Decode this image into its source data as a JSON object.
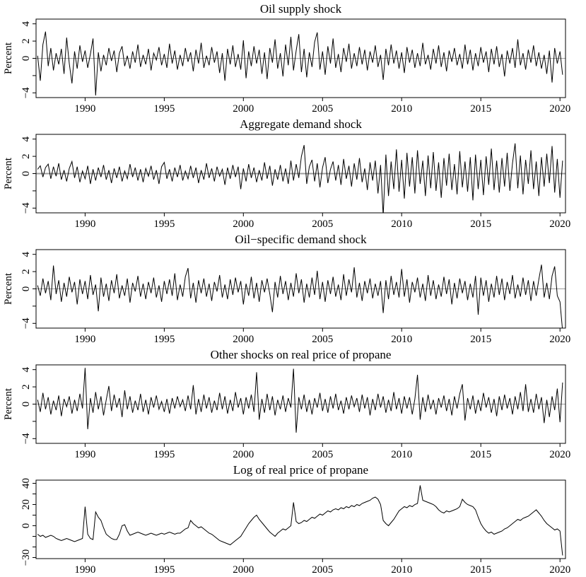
{
  "figure": {
    "background": "#ffffff",
    "series_color": "#000000",
    "axis_color": "#000000",
    "zero_line_color": "#9c9c9c",
    "font_size_title": 17,
    "font_size_ticks": 15
  },
  "chart_data": [
    {
      "type": "line",
      "title": "Oil supply shock",
      "ylabel": "Percent",
      "x_start": 1987.0,
      "x_step_years": 0.166667,
      "x_range": [
        1986.9,
        2020.35
      ],
      "xticks": [
        1990,
        1995,
        2000,
        2005,
        2010,
        2015,
        2020
      ],
      "ylim": [
        -4.55,
        4.55
      ],
      "ytick_positions": [
        -4,
        -2,
        0,
        2,
        4
      ],
      "ytick_labels": [
        "−4",
        "",
        "0",
        "2",
        "4"
      ],
      "zero_line": true,
      "zero_line_width": 1,
      "values": [
        0.3,
        -2.6,
        1.6,
        3.1,
        -0.9,
        1.2,
        -1.4,
        0.6,
        -0.7,
        1.1,
        -1.8,
        2.4,
        -0.6,
        -2.9,
        0.8,
        -1.2,
        1.5,
        -0.4,
        0.9,
        -1.1,
        0.5,
        2.3,
        -4.3,
        0.7,
        -1.5,
        0.4,
        -0.8,
        1.2,
        -0.3,
        0.9,
        -1.6,
        0.6,
        1.4,
        -0.9,
        0.3,
        -1.2,
        0.8,
        -0.5,
        1.6,
        -1.0,
        0.4,
        -0.7,
        1.1,
        -1.4,
        0.6,
        -0.2,
        1.3,
        -0.8,
        0.5,
        -1.1,
        1.7,
        -0.6,
        0.9,
        -1.3,
        0.4,
        -0.9,
        1.2,
        -0.4,
        0.7,
        -1.5,
        1.0,
        -0.6,
        1.8,
        -1.1,
        0.3,
        -0.8,
        1.3,
        -0.5,
        0.8,
        -1.7,
        0.6,
        -2.6,
        1.1,
        -0.7,
        1.5,
        -1.0,
        0.5,
        -1.3,
        2.1,
        -2.3,
        0.8,
        -0.9,
        1.4,
        -0.6,
        1.0,
        -1.8,
        0.7,
        -2.4,
        1.2,
        -0.5,
        2.2,
        -1.2,
        0.6,
        -2.1,
        1.6,
        -0.8,
        2.5,
        -1.4,
        0.9,
        2.8,
        -1.6,
        1.1,
        -2.2,
        0.7,
        -1.0,
        1.9,
        3.0,
        -1.3,
        0.8,
        -1.9,
        1.4,
        -0.6,
        2.3,
        -1.1,
        0.5,
        -1.6,
        1.2,
        -0.4,
        1.7,
        -1.2,
        0.6,
        -0.9,
        1.3,
        -0.7,
        1.0,
        -1.4,
        0.8,
        -0.5,
        1.5,
        -1.0,
        0.4,
        -2.5,
        1.1,
        -0.8,
        1.6,
        -0.6,
        0.9,
        -1.2,
        0.7,
        -1.7,
        1.3,
        -0.5,
        1.0,
        -1.1,
        0.6,
        -0.9,
        1.8,
        -0.7,
        0.4,
        -1.3,
        1.1,
        -0.6,
        1.5,
        -1.0,
        0.7,
        -1.5,
        0.9,
        -0.4,
        1.2,
        -0.8,
        0.5,
        -1.2,
        1.6,
        -0.7,
        1.0,
        -1.4,
        0.6,
        -0.9,
        1.3,
        -0.5,
        0.8,
        -1.6,
        1.1,
        -0.7,
        1.4,
        -1.0,
        0.5,
        -2.1,
        0.9,
        -0.6,
        1.2,
        -1.1,
        2.2,
        -0.8,
        0.6,
        -1.3,
        1.0,
        -0.5,
        1.5,
        -0.9,
        0.7,
        -1.2,
        0.4,
        -1.8,
        0.9,
        -2.8,
        1.2,
        -0.6,
        0.8,
        -1.9
      ]
    },
    {
      "type": "line",
      "title": "Aggregate demand shock",
      "ylabel": "Percent",
      "x_start": 1987.0,
      "x_step_years": 0.166667,
      "x_range": [
        1986.9,
        2020.35
      ],
      "xticks": [
        1990,
        1995,
        2000,
        2005,
        2010,
        2015,
        2020
      ],
      "ylim": [
        -4.55,
        4.55
      ],
      "ytick_positions": [
        -4,
        -2,
        0,
        2,
        4
      ],
      "ytick_labels": [
        "−4",
        "",
        "0",
        "2",
        "4"
      ],
      "zero_line": true,
      "zero_line_width": 2,
      "values": [
        0.5,
        0.9,
        -0.4,
        0.7,
        1.1,
        -0.6,
        0.8,
        -0.3,
        1.2,
        -0.7,
        0.4,
        -0.9,
        0.6,
        1.4,
        -0.5,
        0.8,
        -1.0,
        0.3,
        -0.6,
        0.9,
        -1.2,
        0.5,
        -0.8,
        0.7,
        -0.4,
        1.0,
        -0.7,
        0.4,
        -1.1,
        0.6,
        -0.5,
        0.8,
        -0.9,
        0.3,
        -0.6,
        1.1,
        -0.4,
        0.7,
        -0.8,
        0.5,
        -1.0,
        0.6,
        -0.3,
        0.9,
        -0.7,
        0.4,
        -1.2,
        0.8,
        1.3,
        -0.6,
        0.5,
        -0.9,
        0.7,
        -0.4,
        1.0,
        -0.8,
        0.3,
        -0.6,
        0.9,
        -0.5,
        0.7,
        -1.1,
        0.4,
        -0.7,
        1.2,
        -0.5,
        0.6,
        -0.9,
        0.8,
        -0.3,
        0.5,
        -1.3,
        0.7,
        -0.6,
        1.0,
        -0.4,
        0.8,
        -1.8,
        0.6,
        -0.9,
        1.1,
        -0.5,
        0.7,
        -1.0,
        0.4,
        -0.8,
        1.3,
        -0.6,
        0.9,
        -1.4,
        0.5,
        -0.7,
        1.0,
        -0.9,
        0.6,
        -1.2,
        1.5,
        -0.8,
        1.1,
        -0.5,
        2.0,
        3.3,
        -1.2,
        0.8,
        1.6,
        -0.9,
        1.2,
        -1.6,
        0.7,
        1.9,
        -1.1,
        0.5,
        1.4,
        -0.8,
        1.0,
        -1.3,
        1.7,
        -0.6,
        0.9,
        -1.5,
        1.2,
        -0.7,
        1.8,
        -1.0,
        0.6,
        -1.9,
        1.3,
        -0.8,
        1.5,
        -2.3,
        1.0,
        -4.9,
        2.2,
        -2.6,
        1.4,
        -1.8,
        2.8,
        -2.1,
        1.6,
        -2.9,
        2.4,
        -1.5,
        1.9,
        -2.3,
        2.7,
        -1.2,
        1.5,
        -2.6,
        2.1,
        -1.7,
        2.5,
        -2.0,
        1.3,
        -2.8,
        1.8,
        -1.4,
        2.3,
        -1.9,
        1.1,
        -2.4,
        2.6,
        -1.6,
        1.4,
        -2.1,
        1.9,
        -3.1,
        2.2,
        -1.8,
        1.6,
        -2.5,
        2.0,
        -1.3,
        2.9,
        -1.9,
        1.5,
        -2.2,
        1.8,
        -1.5,
        2.4,
        -2.0,
        1.2,
        3.5,
        -1.7,
        2.1,
        -2.4,
        1.6,
        -1.2,
        2.7,
        -1.8,
        1.4,
        -2.6,
        1.9,
        -1.5,
        2.3,
        -1.1,
        3.2,
        -2.2,
        1.7,
        -2.8,
        1.5
      ]
    },
    {
      "type": "line",
      "title": "Oil−specific demand shock",
      "ylabel": "Percent",
      "x_start": 1987.0,
      "x_step_years": 0.166667,
      "x_range": [
        1986.9,
        2020.35
      ],
      "xticks": [
        1990,
        1995,
        2000,
        2005,
        2010,
        2015,
        2020
      ],
      "ylim": [
        -4.55,
        4.55
      ],
      "ytick_positions": [
        -4,
        -2,
        0,
        2,
        4
      ],
      "ytick_labels": [
        "−4",
        "",
        "0",
        "2",
        "4"
      ],
      "zero_line": true,
      "zero_line_width": 1,
      "values": [
        0.4,
        -0.8,
        1.2,
        -0.5,
        0.9,
        -1.3,
        2.7,
        -0.6,
        1.0,
        -1.5,
        0.7,
        -0.9,
        1.4,
        -0.4,
        0.8,
        -1.8,
        1.1,
        -0.6,
        0.9,
        -1.2,
        1.6,
        -0.7,
        0.5,
        -2.6,
        1.3,
        -0.9,
        0.6,
        -1.4,
        1.0,
        -0.5,
        1.7,
        -1.1,
        0.4,
        -0.8,
        1.2,
        -1.6,
        0.7,
        -0.3,
        1.5,
        -0.9,
        0.6,
        -1.2,
        0.8,
        -0.5,
        1.3,
        -1.0,
        0.4,
        -1.5,
        0.9,
        -0.6,
        1.1,
        -0.8,
        1.8,
        -1.3,
        0.5,
        -0.9,
        1.4,
        2.4,
        -1.1,
        0.7,
        -1.6,
        1.0,
        -0.5,
        1.2,
        -0.9,
        0.6,
        -1.4,
        0.8,
        -0.3,
        1.6,
        -1.0,
        0.5,
        -1.2,
        1.1,
        -0.7,
        1.3,
        -0.4,
        0.9,
        -1.8,
        0.6,
        -0.8,
        1.4,
        -1.1,
        0.7,
        -1.5,
        1.0,
        -0.4,
        1.2,
        -0.6,
        -2.7,
        0.8,
        -1.0,
        1.5,
        -0.6,
        0.9,
        -1.3,
        0.7,
        -0.9,
        1.8,
        -0.5,
        1.1,
        -1.6,
        0.6,
        -1.0,
        1.3,
        -0.7,
        2.1,
        -1.2,
        0.8,
        -1.5,
        1.0,
        -0.6,
        1.4,
        -0.9,
        0.5,
        -1.3,
        1.7,
        -0.8,
        1.1,
        -0.4,
        2.5,
        -1.0,
        0.7,
        -1.4,
        0.9,
        -0.5,
        1.2,
        -1.1,
        0.6,
        -0.8,
        0.9,
        -2.8,
        1.0,
        -1.2,
        1.5,
        -0.7,
        0.8,
        -1.0,
        2.3,
        -0.9,
        1.1,
        -1.6,
        0.8,
        -0.4,
        1.3,
        -1.0,
        0.6,
        -1.4,
        1.6,
        -0.8,
        1.0,
        -1.2,
        0.5,
        -0.9,
        1.4,
        -0.6,
        1.1,
        -1.8,
        0.7,
        -1.1,
        1.2,
        -0.5,
        0.9,
        -1.3,
        0.6,
        -1.0,
        1.5,
        -3.0,
        1.3,
        -0.8,
        1.0,
        -1.5,
        0.6,
        -1.0,
        1.5,
        -0.7,
        1.2,
        -1.3,
        0.8,
        -0.6,
        1.6,
        -1.1,
        0.5,
        -0.9,
        1.3,
        -0.7,
        1.0,
        -1.4,
        0.9,
        -0.8,
        1.1,
        2.8,
        -1.0,
        0.7,
        -1.2,
        1.5,
        2.6,
        -0.8,
        -1.5,
        -4.9
      ]
    },
    {
      "type": "line",
      "title": "Other shocks on real price of propane",
      "ylabel": "Percent",
      "x_start": 1987.0,
      "x_step_years": 0.166667,
      "x_range": [
        1986.9,
        2020.35
      ],
      "xticks": [
        1990,
        1995,
        2000,
        2005,
        2010,
        2015,
        2020
      ],
      "ylim": [
        -4.55,
        4.55
      ],
      "ytick_positions": [
        -4,
        -2,
        0,
        2,
        4
      ],
      "ytick_labels": [
        "−4",
        "",
        "0",
        "2",
        "4"
      ],
      "zero_line": true,
      "zero_line_width": 1,
      "values": [
        0.5,
        -0.9,
        1.3,
        -0.6,
        0.8,
        -1.2,
        0.4,
        -0.7,
        1.0,
        -1.4,
        0.6,
        -0.3,
        0.9,
        -1.1,
        0.5,
        -0.8,
        1.2,
        -0.5,
        4.2,
        -2.9,
        0.7,
        -1.0,
        1.4,
        -0.6,
        0.9,
        -1.3,
        0.5,
        2.1,
        -0.8,
        1.1,
        -0.4,
        0.7,
        -1.5,
        1.6,
        -0.6,
        0.9,
        -1.0,
        0.4,
        -0.7,
        1.2,
        -0.9,
        0.5,
        -1.2,
        0.8,
        -0.4,
        1.0,
        -0.6,
        0.3,
        -0.9,
        0.6,
        -1.1,
        0.7,
        -0.5,
        0.9,
        -0.3,
        0.5,
        -0.8,
        1.0,
        -0.6,
        2.2,
        -1.2,
        0.6,
        -0.9,
        1.1,
        -0.5,
        0.8,
        -1.0,
        0.4,
        -0.7,
        1.3,
        -0.6,
        0.9,
        -1.1,
        0.5,
        -0.8,
        1.4,
        -0.4,
        0.7,
        -1.2,
        0.8,
        -0.5,
        1.1,
        -0.9,
        3.7,
        -1.8,
        0.6,
        -1.0,
        1.2,
        -0.7,
        0.9,
        -1.3,
        0.5,
        -0.6,
        1.0,
        -0.9,
        0.7,
        -0.4,
        4.1,
        -3.3,
        0.8,
        -0.6,
        1.1,
        -0.9,
        0.5,
        -1.2,
        0.7,
        -0.4,
        1.3,
        -0.8,
        0.6,
        -1.0,
        0.9,
        -0.5,
        1.2,
        -0.7,
        0.4,
        -1.1,
        0.8,
        -0.6,
        1.0,
        -0.3,
        0.7,
        -0.9,
        1.1,
        -0.5,
        0.8,
        -1.3,
        0.6,
        -0.7,
        1.2,
        -0.4,
        0.9,
        -1.0,
        0.5,
        -0.8,
        1.4,
        -0.6,
        0.7,
        -1.1,
        0.9,
        -0.5,
        0.8,
        -1.2,
        0.6,
        3.4,
        -1.8,
        0.8,
        -0.9,
        1.1,
        -0.6,
        0.5,
        -1.2,
        0.7,
        -0.4,
        1.0,
        -0.8,
        0.6,
        -1.3,
        0.9,
        -0.5,
        1.2,
        2.3,
        -1.9,
        0.7,
        -0.6,
        1.0,
        -1.1,
        0.5,
        -0.8,
        1.3,
        -0.4,
        0.8,
        -1.0,
        0.6,
        -1.4,
        0.9,
        -0.7,
        1.1,
        -0.5,
        0.7,
        -1.2,
        0.9,
        -0.6,
        1.4,
        -0.8,
        2.3,
        -0.9,
        0.6,
        -1.0,
        1.2,
        -0.6,
        0.8,
        -2.2,
        0.5,
        -1.5,
        0.9,
        -0.7,
        1.8,
        -2.1,
        2.5
      ]
    },
    {
      "type": "line",
      "title": "Log of real price of propane",
      "ylabel": "",
      "x_start": 1987.0,
      "x_step_years": 0.166667,
      "x_range": [
        1986.9,
        2020.35
      ],
      "xticks": [
        1990,
        1995,
        2000,
        2005,
        2010,
        2015,
        2020
      ],
      "ylim": [
        -31,
        43
      ],
      "ytick_positions": [
        -30,
        -20,
        -10,
        0,
        10,
        20,
        30,
        40
      ],
      "ytick_labels": [
        "−30",
        "",
        "",
        "0",
        "",
        "20",
        "",
        "40"
      ],
      "zero_line": false,
      "zero_line_width": 1,
      "values": [
        -8,
        -10,
        -9,
        -11,
        -10,
        -9,
        -10,
        -12,
        -13,
        -14,
        -13,
        -12,
        -13,
        -14,
        -15,
        -14,
        -13,
        -12,
        18,
        -8,
        -12,
        -13,
        13,
        8,
        5,
        -2,
        -8,
        -10,
        -12,
        -13,
        -13,
        -8,
        0,
        1,
        -5,
        -9,
        -8,
        -7,
        -6,
        -7,
        -8,
        -9,
        -8,
        -7,
        -8,
        -9,
        -8,
        -7,
        -8,
        -7,
        -6,
        -7,
        -8,
        -7,
        -7,
        -5,
        -3,
        -2,
        5,
        2,
        0,
        -2,
        -1,
        -3,
        -5,
        -7,
        -8,
        -10,
        -12,
        -14,
        -15,
        -16,
        -17,
        -18,
        -16,
        -14,
        -12,
        -10,
        -6,
        -2,
        2,
        5,
        8,
        10,
        6,
        3,
        0,
        -3,
        -6,
        -8,
        -10,
        -7,
        -5,
        -3,
        -4,
        -2,
        0,
        22,
        4,
        2,
        3,
        5,
        4,
        6,
        8,
        7,
        9,
        11,
        10,
        12,
        14,
        13,
        15,
        16,
        15,
        17,
        16,
        18,
        17,
        19,
        18,
        20,
        19,
        21,
        22,
        23,
        24,
        26,
        27,
        25,
        20,
        5,
        2,
        0,
        3,
        6,
        10,
        14,
        16,
        18,
        17,
        19,
        18,
        20,
        21,
        38,
        24,
        23,
        22,
        21,
        20,
        18,
        15,
        13,
        12,
        14,
        13,
        14,
        15,
        16,
        18,
        25,
        22,
        20,
        19,
        18,
        15,
        8,
        2,
        -2,
        -5,
        -7,
        -6,
        -8,
        -7,
        -6,
        -5,
        -3,
        -2,
        0,
        2,
        4,
        6,
        5,
        7,
        8,
        9,
        11,
        13,
        15,
        12,
        9,
        5,
        2,
        0,
        -2,
        -4,
        -3,
        -5,
        -28
      ]
    }
  ]
}
